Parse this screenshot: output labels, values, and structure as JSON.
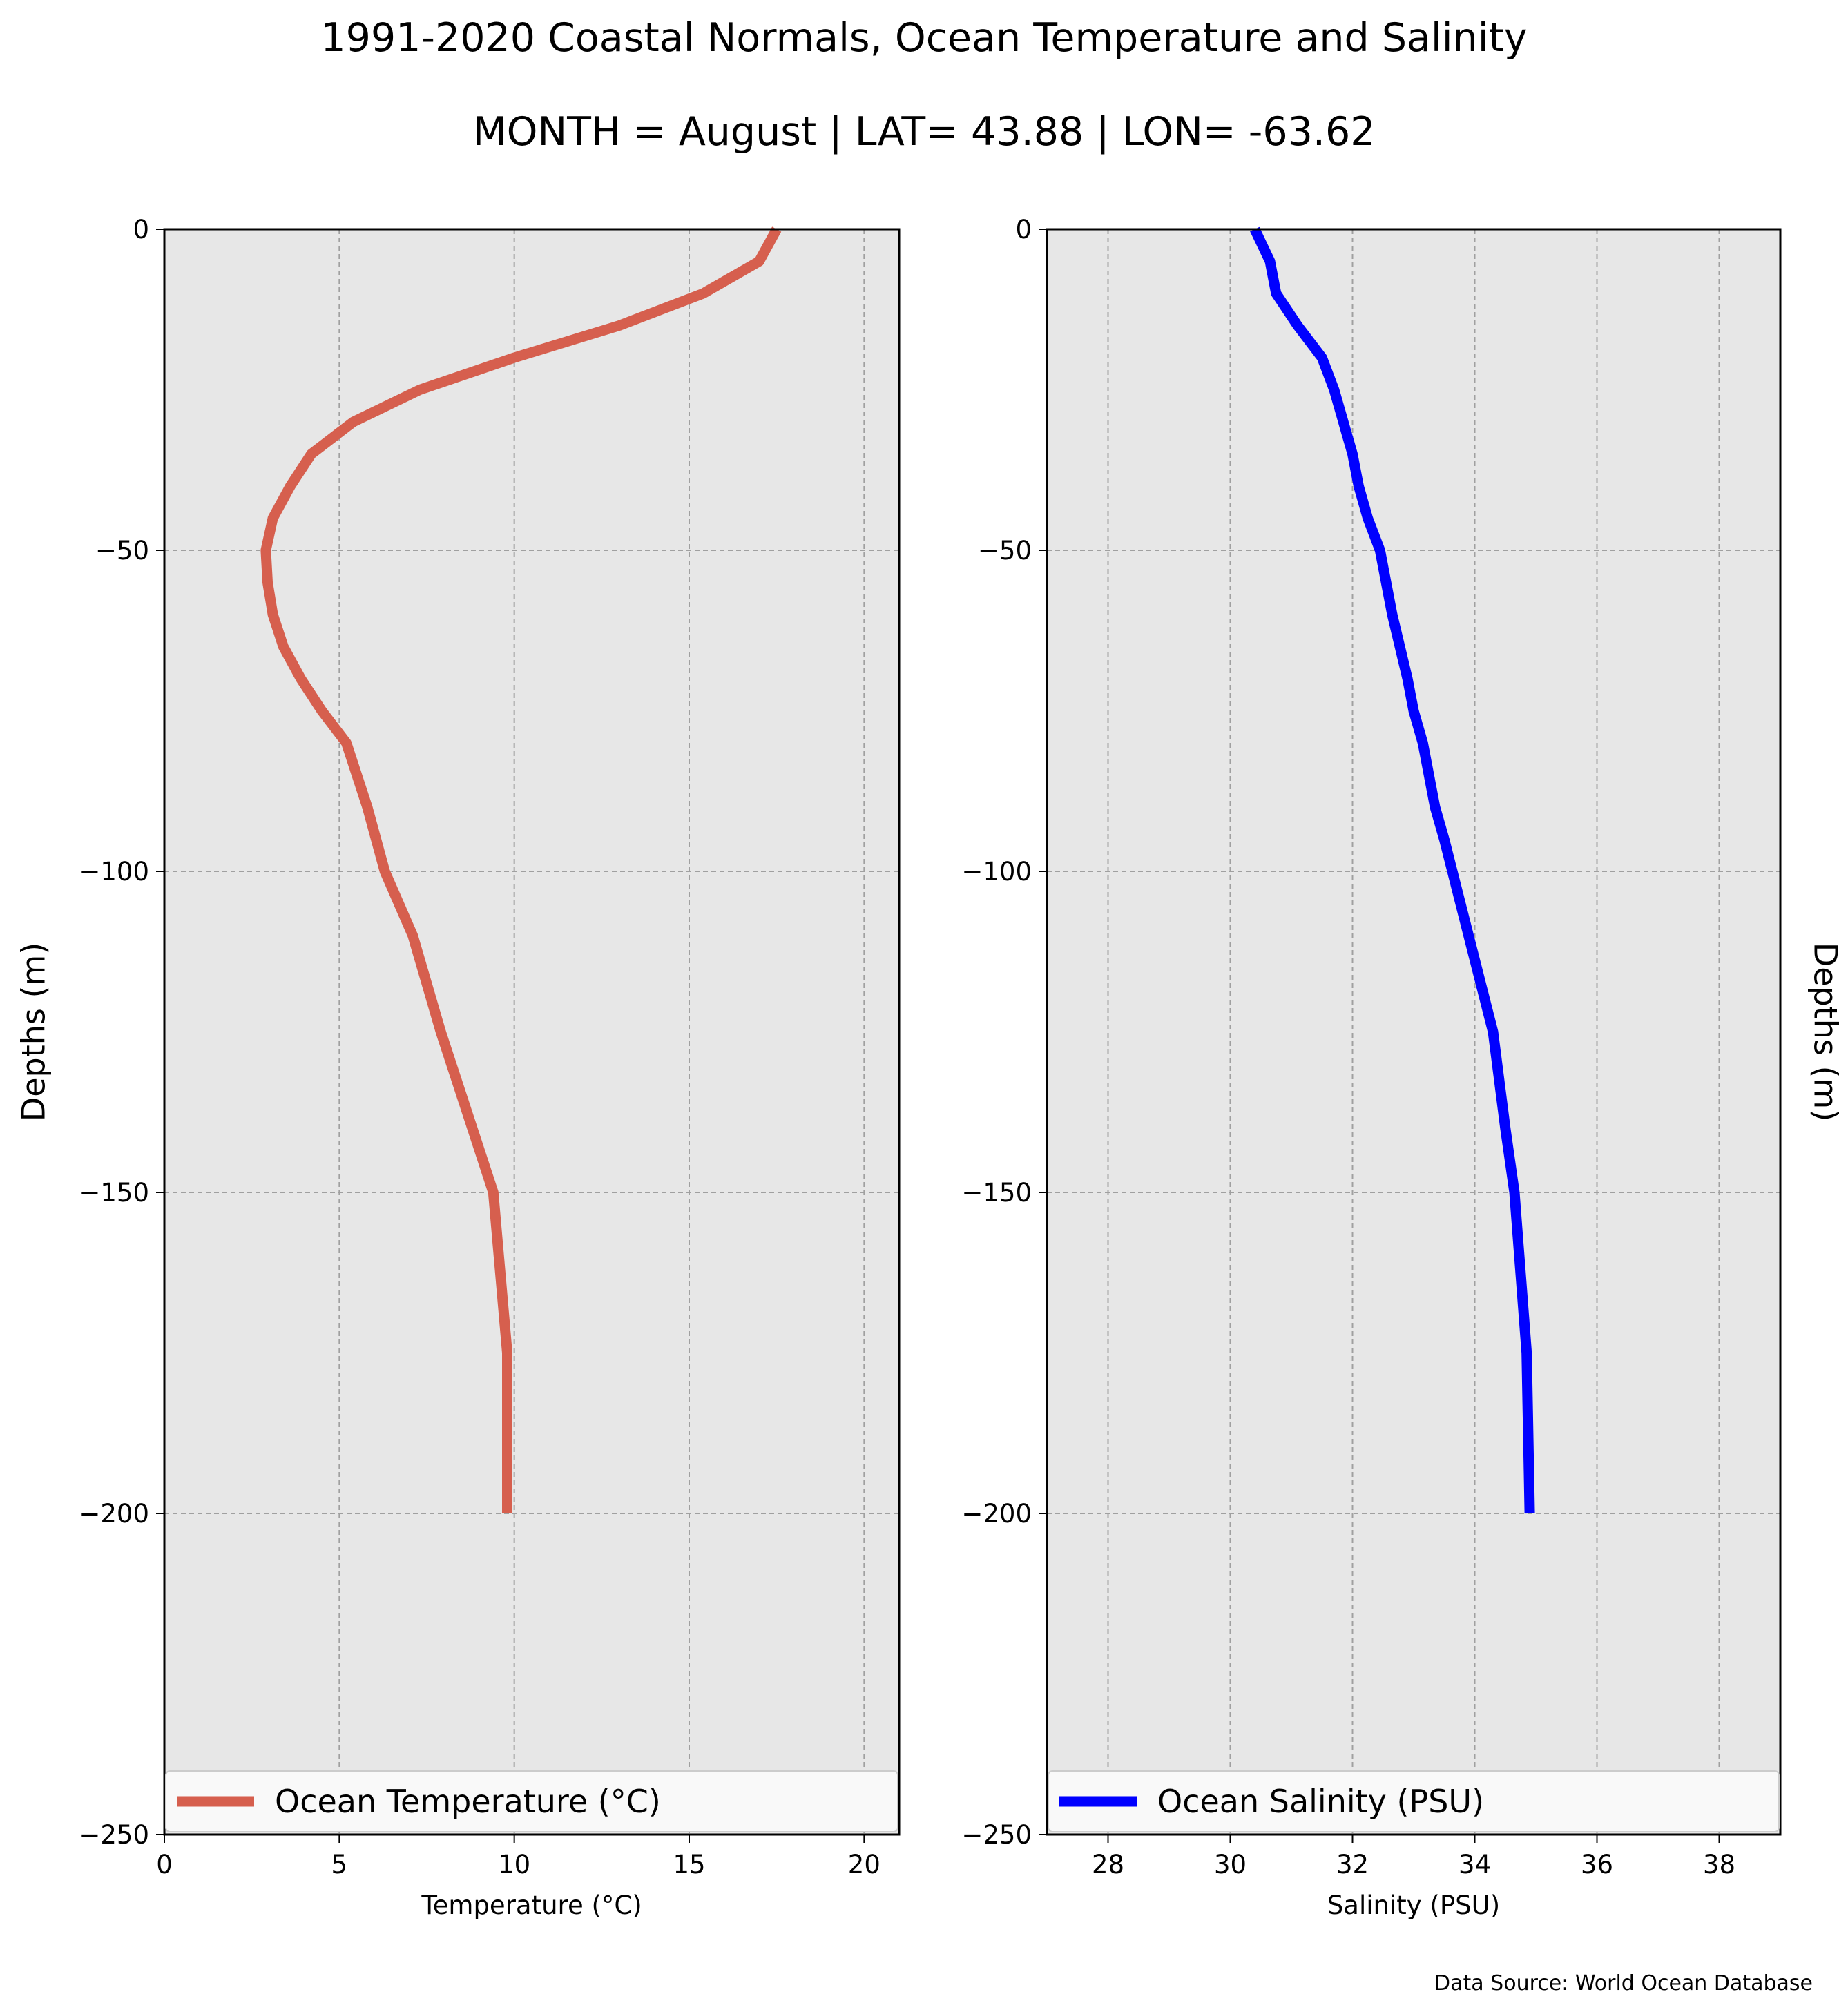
{
  "figure": {
    "title": "1991-2020 Coastal Normals, Ocean Temperature and Salinity",
    "subtitle": "MONTH = August | LAT= 43.88 | LON= -63.62",
    "source": "Data Source: World Ocean Database"
  },
  "chart_data": [
    {
      "type": "line",
      "xlabel": "Temperature (°C)",
      "ylabel": "Depths (m)",
      "xlim": [
        0,
        21
      ],
      "ylim": [
        -250,
        0
      ],
      "xticks": [
        0,
        5,
        10,
        15,
        20
      ],
      "yticks": [
        0,
        -50,
        -100,
        -150,
        -200,
        -250
      ],
      "ytick_labels": [
        "0",
        "−50",
        "−100",
        "−150",
        "−200",
        "−250"
      ],
      "grid": true,
      "legend_position": "bottom",
      "series": [
        {
          "name": "Ocean Temperature (°C)",
          "color": "#d65f4e",
          "x": [
            17.5,
            17.0,
            15.4,
            13.0,
            10.0,
            7.3,
            5.4,
            4.2,
            3.6,
            3.1,
            2.9,
            2.95,
            3.1,
            3.4,
            3.9,
            4.5,
            5.2,
            5.8,
            6.3,
            7.1,
            7.9,
            9.4,
            9.8,
            9.8
          ],
          "y": [
            0,
            -5,
            -10,
            -15,
            -20,
            -25,
            -30,
            -35,
            -40,
            -45,
            -50,
            -55,
            -60,
            -65,
            -70,
            -75,
            -80,
            -90,
            -100,
            -110,
            -125,
            -150,
            -175,
            -200
          ]
        }
      ]
    },
    {
      "type": "line",
      "xlabel": "Salinity (PSU)",
      "ylabel": "Depths (m)",
      "xlim": [
        27,
        39
      ],
      "ylim": [
        -250,
        0
      ],
      "xticks": [
        28,
        30,
        32,
        34,
        36,
        38
      ],
      "yticks": [
        0,
        -50,
        -100,
        -150,
        -200,
        -250
      ],
      "ytick_labels": [
        "0",
        "−50",
        "−100",
        "−150",
        "−200",
        "−250"
      ],
      "grid": true,
      "legend_position": "bottom",
      "series": [
        {
          "name": "Ocean Salinity (PSU)",
          "color": "#0000ff",
          "x": [
            30.4,
            30.65,
            30.75,
            31.1,
            31.5,
            31.7,
            31.85,
            32.0,
            32.1,
            32.25,
            32.45,
            32.65,
            32.9,
            33.0,
            33.15,
            33.35,
            33.5,
            33.9,
            34.3,
            34.5,
            34.65,
            34.85,
            34.9
          ],
          "y": [
            0,
            -5,
            -10,
            -15,
            -20,
            -25,
            -30,
            -35,
            -40,
            -45,
            -50,
            -60,
            -70,
            -75,
            -80,
            -90,
            -95,
            -110,
            -125,
            -140,
            -150,
            -175,
            -200
          ]
        }
      ]
    }
  ]
}
